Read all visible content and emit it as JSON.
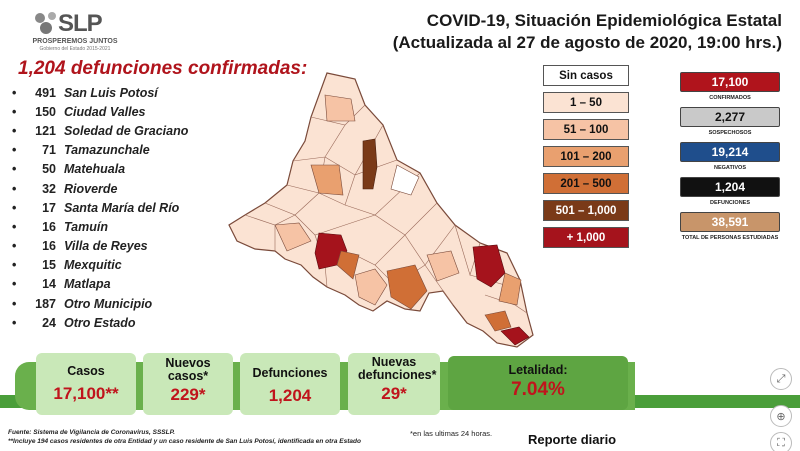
{
  "logo": {
    "text": "SLP",
    "sub1": "PROSPEREMOS JUNTOS",
    "sub2": "Gobierno del Estado 2015-2021"
  },
  "title": {
    "line1": "COVID-19, Situación Epidemiológica Estatal",
    "line2": "(Actualizada al 27 de agosto de 2020, 19:00 hrs.)"
  },
  "deaths_heading": "1,204 defunciones confirmadas:",
  "municipalities": [
    {
      "count": "491",
      "name": "San Luis Potosí"
    },
    {
      "count": "150",
      "name": "Ciudad Valles"
    },
    {
      "count": "121",
      "name": "Soledad de Graciano"
    },
    {
      "count": "71",
      "name": "Tamazunchale"
    },
    {
      "count": "50",
      "name": "Matehuala"
    },
    {
      "count": "32",
      "name": "Rioverde"
    },
    {
      "count": "17",
      "name": "Santa María del Río"
    },
    {
      "count": "16",
      "name": "Tamuín"
    },
    {
      "count": "16",
      "name": "Villa de Reyes"
    },
    {
      "count": "15",
      "name": "Mexquitic"
    },
    {
      "count": "14",
      "name": "Matlapa"
    },
    {
      "count": "187",
      "name": "Otro Municipio"
    },
    {
      "count": "24",
      "name": "Otro Estado"
    }
  ],
  "legend": [
    {
      "label": "Sin casos",
      "color": "#ffffff"
    },
    {
      "label": "1 – 50",
      "color": "#fbe3d3"
    },
    {
      "label": "51 – 100",
      "color": "#f6c3a5"
    },
    {
      "label": "101 – 200",
      "color": "#e9a06f"
    },
    {
      "label": "201 – 500",
      "color": "#d06f36"
    },
    {
      "label": "501 – 1,000",
      "color": "#7a3a18"
    },
    {
      "label": "+ 1,000",
      "color": "#a5131c"
    }
  ],
  "stats": [
    {
      "value": "17,100",
      "label": "CONFIRMADOS",
      "bg": "#b0141c",
      "fg": "#ffffff"
    },
    {
      "value": "2,277",
      "label": "SOSPECHOSOS",
      "bg": "#c9c9c9",
      "fg": "#111111"
    },
    {
      "value": "19,214",
      "label": "NEGATIVOS",
      "bg": "#1f4e8c",
      "fg": "#ffffff"
    },
    {
      "value": "1,204",
      "label": "DEFUNCIONES",
      "bg": "#111111",
      "fg": "#ffffff"
    },
    {
      "value": "38,591",
      "label": "TOTAL DE PERSONAS ESTUDIADAS",
      "bg": "#c8956a",
      "fg": "#ffffff"
    }
  ],
  "cards": {
    "casos": {
      "label": "Casos",
      "value": "17,100**"
    },
    "nuevos_casos": {
      "label": "Nuevos casos*",
      "value": "229*"
    },
    "defunciones": {
      "label": "Defunciones",
      "value": "1,204"
    },
    "nuevas_defunciones": {
      "label": "Nuevas defunciones*",
      "value": "29*"
    },
    "letalidad": {
      "label": "Letalidad:",
      "value": "7.04%"
    }
  },
  "footnotes": {
    "source": "Fuente: Sistema de Vigilancia de Coronavirus, SSSLP.",
    "note": "**Incluye 194 casos residentes de otra Entidad y un caso residente de San Luis Potosí, identificada en otra Estado",
    "star": "*en las ultimas 24 horas."
  },
  "report_label": "Reporte diario",
  "controls": {
    "expand": "⤢",
    "zoom": "⊕",
    "fullscreen": "⛶"
  }
}
